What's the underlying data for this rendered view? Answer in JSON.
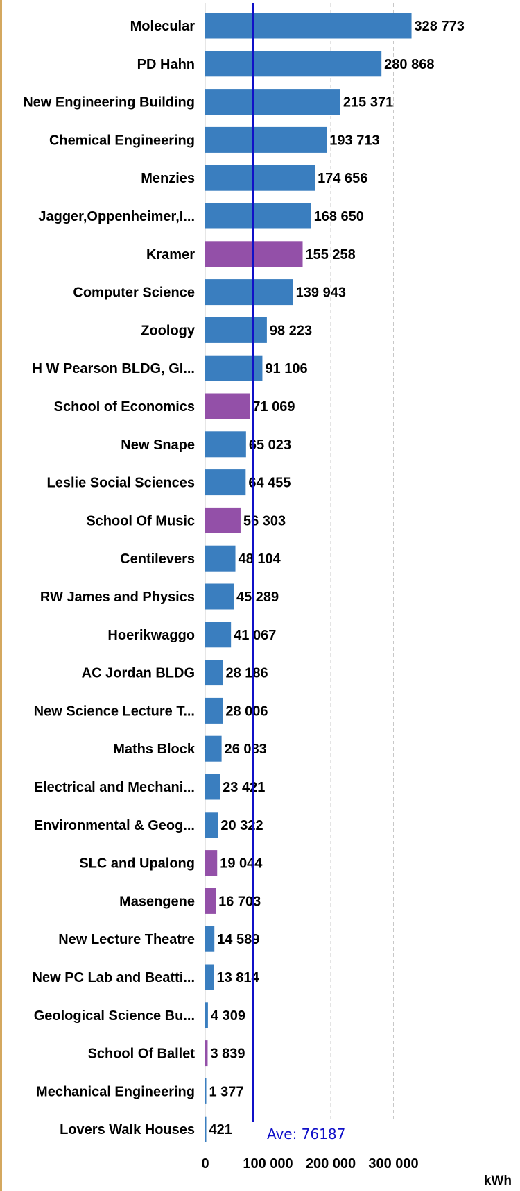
{
  "chart_data": {
    "type": "bar",
    "orientation": "horizontal",
    "unit": "kWh",
    "categories": [
      "Molecular",
      "PD Hahn",
      "New Engineering Building",
      "Chemical Engineering",
      "Menzies",
      "Jagger,Oppenheimer,I...",
      "Kramer",
      "Computer Science",
      "Zoology",
      "H W Pearson BLDG, Gl...",
      "School of Economics",
      "New Snape",
      "Leslie Social Sciences",
      "School Of Music",
      "Centilevers",
      "RW James and Physics",
      "Hoerikwaggo",
      "AC Jordan BLDG",
      "New Science Lecture T...",
      "Maths Block",
      "Electrical and Mechani...",
      "Environmental & Geog...",
      "SLC and Upalong",
      "Masengene",
      "New Lecture Theatre",
      "New PC Lab and Beatti...",
      "Geological Science Bu...",
      "School Of Ballet",
      "Mechanical Engineering",
      "Lovers Walk Houses"
    ],
    "values": [
      328773,
      280868,
      215371,
      193713,
      174656,
      168650,
      155258,
      139943,
      98223,
      91106,
      71069,
      65023,
      64455,
      56303,
      48104,
      45289,
      41067,
      28186,
      28006,
      26083,
      23421,
      20322,
      19044,
      16703,
      14589,
      13814,
      4309,
      3839,
      1377,
      421
    ],
    "value_labels": [
      "328 773",
      "280 868",
      "215 371",
      "193 713",
      "174 656",
      "168 650",
      "155 258",
      "139 943",
      "98 223",
      "91 106",
      "71 069",
      "65 023",
      "64 455",
      "56 303",
      "48 104",
      "45 289",
      "41 067",
      "28 186",
      "28 006",
      "26 083",
      "23 421",
      "20 322",
      "19 044",
      "16 703",
      "14 589",
      "13 814",
      "4 309",
      "3 839",
      "1 377",
      "421"
    ],
    "bar_colors": [
      "#3a7ebf",
      "#3a7ebf",
      "#3a7ebf",
      "#3a7ebf",
      "#3a7ebf",
      "#3a7ebf",
      "#9350a8",
      "#3a7ebf",
      "#3a7ebf",
      "#3a7ebf",
      "#9350a8",
      "#3a7ebf",
      "#3a7ebf",
      "#9350a8",
      "#3a7ebf",
      "#3a7ebf",
      "#3a7ebf",
      "#3a7ebf",
      "#3a7ebf",
      "#3a7ebf",
      "#3a7ebf",
      "#3a7ebf",
      "#9350a8",
      "#9350a8",
      "#3a7ebf",
      "#3a7ebf",
      "#3a7ebf",
      "#9350a8",
      "#3a7ebf",
      "#3a7ebf"
    ],
    "colors": {
      "primary": "#3a7ebf",
      "highlight": "#9350a8",
      "average_line": "#1010c8"
    },
    "xlim": [
      0,
      340000
    ],
    "x_ticks": [
      0,
      100000,
      200000,
      300000
    ],
    "x_tick_labels": [
      "0",
      "100 000",
      "200 000",
      "300 000"
    ],
    "grid": true,
    "average": {
      "value": 76187,
      "label": "Ave: 76187"
    }
  }
}
